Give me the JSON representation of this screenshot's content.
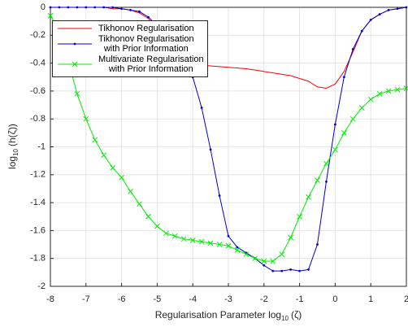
{
  "chart_data": {
    "type": "line",
    "xlabel": {
      "text": "Regularisation Parameter log",
      "sub": "10",
      "rest": "(ζ)"
    },
    "ylabel": {
      "text": "log",
      "sub": "10",
      "rest": "(h(ζ))"
    },
    "xlim": [
      -8,
      2
    ],
    "ylim": [
      -2,
      0
    ],
    "xticks": [
      -8,
      -7,
      -6,
      -5,
      -4,
      -3,
      -2,
      -1,
      0,
      1,
      2
    ],
    "yticks": [
      -2,
      -1.8,
      -1.6,
      -1.4,
      -1.2,
      -1,
      -0.8,
      -0.6,
      -0.4,
      -0.2,
      0
    ],
    "grid": true,
    "legend": "upper left",
    "x": [
      -8,
      -7.75,
      -7.5,
      -7.25,
      -7,
      -6.75,
      -6.5,
      -6.25,
      -6,
      -5.75,
      -5.5,
      -5.25,
      -5,
      -4.75,
      -4.5,
      -4.25,
      -4,
      -3.75,
      -3.5,
      -3.25,
      -3,
      -2.75,
      -2.5,
      -2.25,
      -2,
      -1.75,
      -1.5,
      -1.25,
      -1,
      -0.75,
      -0.5,
      -0.25,
      0,
      0.25,
      0.5,
      0.75,
      1,
      1.25,
      1.5,
      1.75,
      2
    ],
    "series": [
      {
        "name": "Tikhonov Regularisation",
        "color": "#ff0000",
        "marker": null,
        "values": [
          0,
          0,
          0,
          0,
          0,
          0,
          0,
          -0.01,
          -0.01,
          -0.02,
          -0.04,
          -0.08,
          -0.15,
          -0.3,
          -0.37,
          -0.4,
          -0.41,
          -0.415,
          -0.42,
          -0.425,
          -0.43,
          -0.435,
          -0.44,
          -0.45,
          -0.46,
          -0.47,
          -0.48,
          -0.49,
          -0.51,
          -0.53,
          -0.57,
          -0.58,
          -0.55,
          -0.46,
          -0.32,
          -0.17,
          -0.09,
          -0.05,
          -0.02,
          -0.01,
          0
        ]
      },
      {
        "name": "Tikhonov Regularisation\nwith Prior Information",
        "color": "#0000cc",
        "marker": "dot",
        "values": [
          0,
          0,
          0,
          0,
          0,
          0,
          0,
          0,
          -0.01,
          -0.02,
          -0.03,
          -0.07,
          -0.13,
          -0.16,
          -0.2,
          -0.33,
          -0.5,
          -0.72,
          -1.02,
          -1.35,
          -1.64,
          -1.72,
          -1.76,
          -1.8,
          -1.85,
          -1.89,
          -1.89,
          -1.88,
          -1.89,
          -1.88,
          -1.7,
          -1.25,
          -0.84,
          -0.5,
          -0.3,
          -0.17,
          -0.09,
          -0.05,
          -0.02,
          -0.01,
          0
        ]
      },
      {
        "name": "Multivariate Regularisation\nwith Prior Information",
        "color": "#00ee00",
        "marker": "x",
        "values": [
          -0.06,
          -0.17,
          -0.38,
          -0.62,
          -0.8,
          -0.95,
          -1.06,
          -1.15,
          -1.22,
          -1.32,
          -1.41,
          -1.5,
          -1.57,
          -1.62,
          -1.64,
          -1.66,
          -1.67,
          -1.68,
          -1.69,
          -1.7,
          -1.71,
          -1.74,
          -1.77,
          -1.8,
          -1.82,
          -1.82,
          -1.77,
          -1.65,
          -1.5,
          -1.36,
          -1.24,
          -1.12,
          -1.02,
          -0.9,
          -0.8,
          -0.72,
          -0.66,
          -0.62,
          -0.6,
          -0.59,
          -0.58
        ]
      }
    ]
  }
}
